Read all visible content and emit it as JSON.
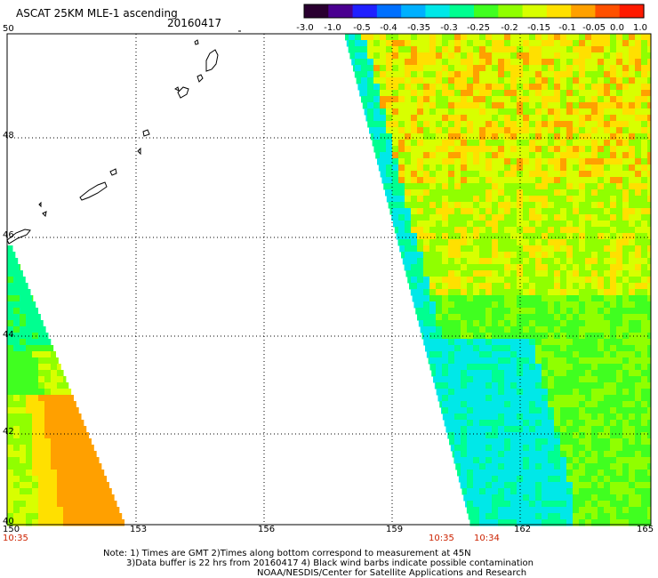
{
  "header": {
    "title": "ASCAT 25KM MLE-1 ascending",
    "date": "20160417"
  },
  "colorbar": {
    "labels": [
      "-3.0",
      "-1.0",
      "-0.5",
      "-0.4",
      "-0.35",
      "-0.3",
      "-0.25",
      "-0.2",
      "-0.15",
      "-0.1",
      "-0.05",
      "0.0",
      "1.0"
    ],
    "colors": [
      "#2a0030",
      "#4a0090",
      "#2020ff",
      "#0070ff",
      "#00b0ff",
      "#00e8e8",
      "#00ff90",
      "#40ff20",
      "#90ff00",
      "#d8ff00",
      "#ffe000",
      "#ffa000",
      "#ff5000",
      "#ff1a00"
    ]
  },
  "map": {
    "lat_labels": [
      "50",
      "48",
      "46",
      "44",
      "42",
      "40"
    ],
    "lon_labels": [
      "150",
      "153",
      "156",
      "159",
      "162",
      "165"
    ],
    "time_labels": [
      "10:35",
      "10:35",
      "10:34"
    ]
  },
  "notes": {
    "line1": "Note: 1) Times are GMT 2)Times along bottom correspond to measurement at 45N",
    "line2": "3)Data buffer is 22 hrs from 20160417 4) Black wind barbs indicate possible contamination",
    "line3": "NOAA/NESDIS/Center for Satellite Applications and Research"
  }
}
